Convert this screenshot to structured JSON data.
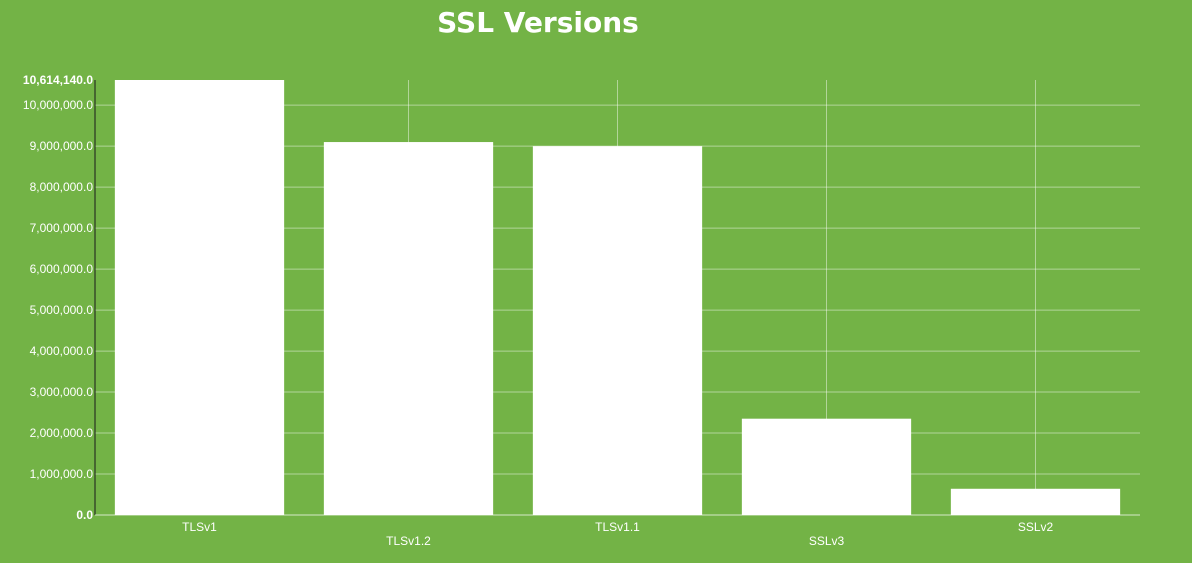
{
  "colors": {
    "background": "#73b346",
    "bar": "#ffffff",
    "text": "#ffffff",
    "grid": "#ffffff"
  },
  "chart_data": {
    "type": "bar",
    "title": "SSL Versions",
    "xlabel": "",
    "ylabel": "",
    "categories": [
      "TLSv1",
      "TLSv1.2",
      "TLSv1.1",
      "SSLv3",
      "SSLv2"
    ],
    "values": [
      10614140,
      9100000,
      9000000,
      2350000,
      640000
    ],
    "ylim": [
      0,
      10614140
    ],
    "y_ticks": [
      0,
      1000000,
      2000000,
      3000000,
      4000000,
      5000000,
      6000000,
      7000000,
      8000000,
      9000000,
      10000000,
      10614140
    ],
    "y_tick_labels": [
      "0.0",
      "1,000,000.0",
      "2,000,000.0",
      "3,000,000.0",
      "4,000,000.0",
      "5,000,000.0",
      "6,000,000.0",
      "7,000,000.0",
      "8,000,000.0",
      "9,000,000.0",
      "10,000,000.0",
      "10,614,140.0"
    ],
    "grid": true,
    "legend": "none"
  }
}
